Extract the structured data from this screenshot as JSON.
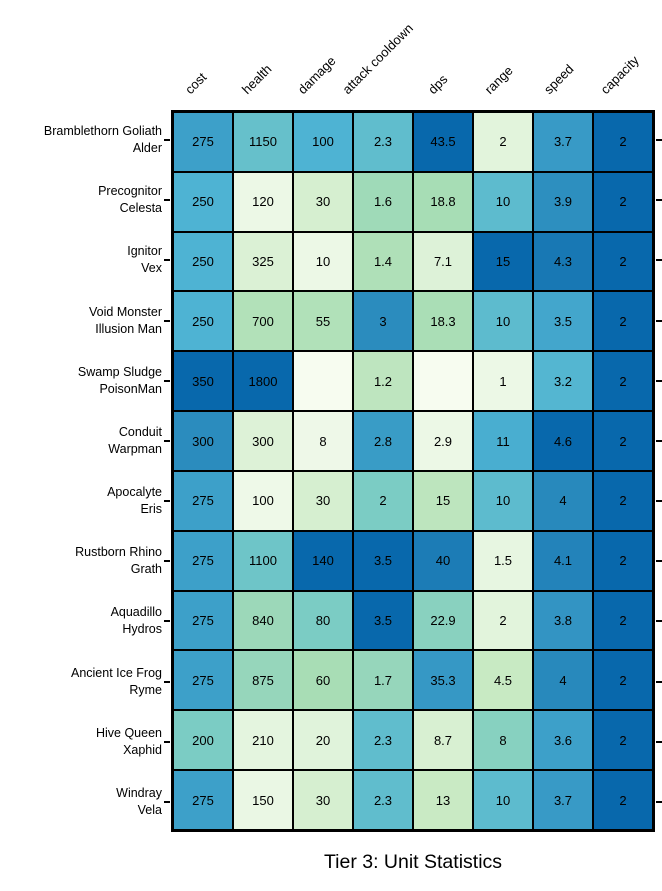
{
  "chart_data": {
    "type": "heatmap",
    "title": "Tier 3: Unit Statistics",
    "columns": [
      "cost",
      "health",
      "damage",
      "attack cooldown",
      "dps",
      "range",
      "speed",
      "capacity"
    ],
    "rows": [
      {
        "name": "Bramblethorn Goliath",
        "subname": "Alder",
        "values": [
          275,
          1150,
          100,
          2.3,
          43.5,
          2,
          3.7,
          2
        ]
      },
      {
        "name": "Precognitor",
        "subname": "Celesta",
        "values": [
          250,
          120,
          30,
          1.6,
          18.8,
          10,
          3.9,
          2
        ]
      },
      {
        "name": "Ignitor",
        "subname": "Vex",
        "values": [
          250,
          325,
          10,
          1.4,
          7.1,
          15,
          4.3,
          2
        ]
      },
      {
        "name": "Void Monster",
        "subname": "Illusion Man",
        "values": [
          250,
          700,
          55,
          3,
          18.3,
          10,
          3.5,
          2
        ]
      },
      {
        "name": "Swamp Sludge",
        "subname": "PoisonMan",
        "values": [
          350,
          1800,
          null,
          1.2,
          null,
          1,
          3.2,
          2
        ]
      },
      {
        "name": "Conduit",
        "subname": "Warpman",
        "values": [
          300,
          300,
          8,
          2.8,
          2.9,
          11,
          4.6,
          2
        ]
      },
      {
        "name": "Apocalyte",
        "subname": "Eris",
        "values": [
          275,
          100,
          30,
          2,
          15,
          10,
          4,
          2
        ]
      },
      {
        "name": "Rustborn Rhino",
        "subname": "Grath",
        "values": [
          275,
          1100,
          140,
          3.5,
          40,
          1.5,
          4.1,
          2
        ]
      },
      {
        "name": "Aquadillo",
        "subname": "Hydros",
        "values": [
          275,
          840,
          80,
          3.5,
          22.9,
          2,
          3.8,
          2
        ]
      },
      {
        "name": "Ancient Ice Frog",
        "subname": "Ryme",
        "values": [
          275,
          875,
          60,
          1.7,
          35.3,
          4.5,
          4,
          2
        ]
      },
      {
        "name": "Hive Queen",
        "subname": "Xaphid",
        "values": [
          200,
          210,
          20,
          2.3,
          8.7,
          8,
          3.6,
          2
        ]
      },
      {
        "name": "Windray",
        "subname": "Vela",
        "values": [
          275,
          150,
          30,
          2.3,
          13,
          10,
          3.7,
          2
        ]
      }
    ],
    "normalization": "cell value divided by column maximum; blank cells treated as 0",
    "colormap_stops": [
      "#f7fcf0",
      "#e0f3db",
      "#ccebc5",
      "#a8ddb5",
      "#7bccc4",
      "#4eb3d3",
      "#2b8cbe",
      "#0868ac"
    ],
    "legend_position": "none",
    "grid": "black cell borders"
  },
  "colors": {
    "background": "#ffffff",
    "grid_lines": "#000000",
    "cell_text": "#000000",
    "label_text": "#000000",
    "colormap_min": "#f7fcf0",
    "colormap_max": "#0868ac"
  },
  "layout_values": {
    "n_rows": 12,
    "n_cols": 8
  }
}
